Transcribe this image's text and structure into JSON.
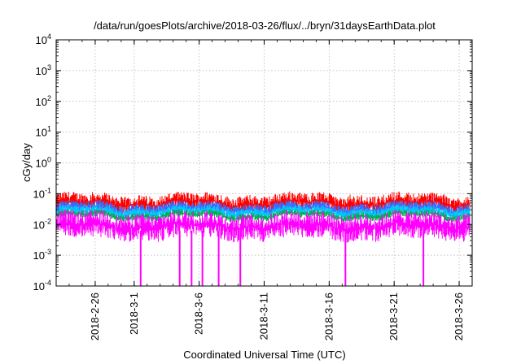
{
  "chart_data": {
    "type": "line",
    "title": "/data/run/goesPlots/archive/2018-03-26/flux/../bryn/31daysEarthData.plot",
    "xlabel": "Coordinated Universal Time (UTC)",
    "ylabel": "cGy/day",
    "yscale": "log",
    "ylim": [
      0.0001,
      10000
    ],
    "y_ticks": [
      {
        "value": 0.0001,
        "base": "10",
        "exp": "-4"
      },
      {
        "value": 0.001,
        "base": "10",
        "exp": "-3"
      },
      {
        "value": 0.01,
        "base": "10",
        "exp": "-2"
      },
      {
        "value": 0.1,
        "base": "10",
        "exp": "-1"
      },
      {
        "value": 1,
        "base": "10",
        "exp": "0"
      },
      {
        "value": 10,
        "base": "10",
        "exp": "1"
      },
      {
        "value": 100,
        "base": "10",
        "exp": "2"
      },
      {
        "value": 1000,
        "base": "10",
        "exp": "3"
      },
      {
        "value": 10000,
        "base": "10",
        "exp": "4"
      }
    ],
    "xlim": [
      "2018-02-23",
      "2018-03-27"
    ],
    "x_ticks": [
      "2018-2-26",
      "2018-3-1",
      "2018-3-6",
      "2018-3-11",
      "2018-3-16",
      "2018-3-21",
      "2018-3-26"
    ],
    "x_tick_dates": [
      "2018-02-26",
      "2018-03-01",
      "2018-03-06",
      "2018-03-11",
      "2018-03-16",
      "2018-03-21",
      "2018-03-26"
    ],
    "grid": true,
    "legend": "none",
    "series": [
      {
        "color": "#ff0000",
        "base": 0.05,
        "jitter": 0.3,
        "peak": 0.085
      },
      {
        "color": "#3a6cff",
        "base": 0.033,
        "jitter": 0.2
      },
      {
        "color": "#00c8ff",
        "base": 0.026,
        "jitter": 0.16
      },
      {
        "color": "#00b050",
        "base": 0.02,
        "jitter": 0.12
      },
      {
        "color": "#ff00ff",
        "base": 0.009,
        "jitter": 0.45,
        "dropouts": [
          "2018-03-01T12:00",
          "2018-03-04T12:00",
          "2018-03-05T10:00",
          "2018-03-06T06:00",
          "2018-03-07T12:00",
          "2018-03-09T04:00",
          "2018-03-17T06:00",
          "2018-03-23T06:00"
        ]
      }
    ]
  }
}
